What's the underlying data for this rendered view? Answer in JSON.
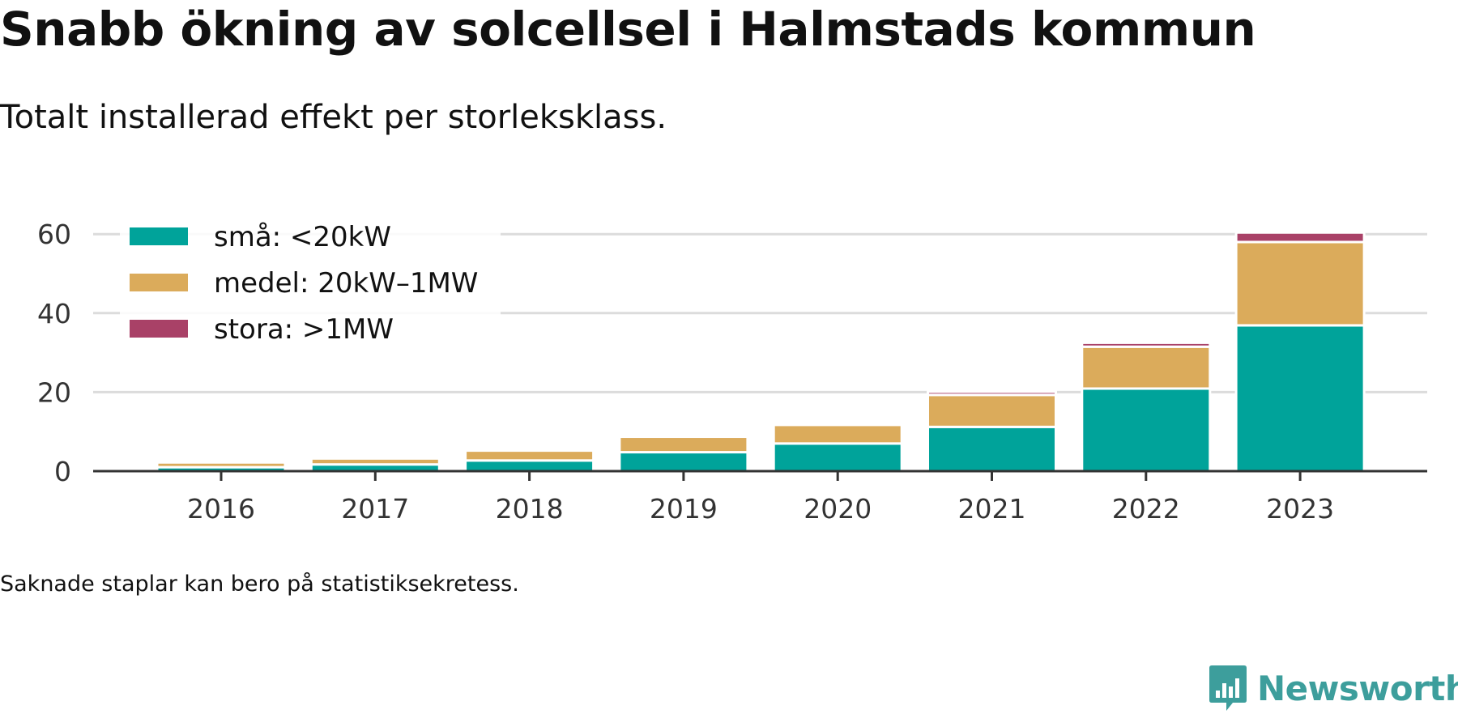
{
  "title": "Snabb ökning av solcellsel i Halmstads kommun",
  "subtitle": "Totalt installerad effekt per storleksklass.",
  "note": "Saknade staplar kan bero på statistiksekretess.",
  "brand": {
    "name": "Newsworthy",
    "icon": "newsworthy-logo-icon"
  },
  "chart_data": {
    "type": "bar",
    "stacked": true,
    "categories": [
      "2016",
      "2017",
      "2018",
      "2019",
      "2020",
      "2021",
      "2022",
      "2023"
    ],
    "series": [
      {
        "name": "små: <20kW",
        "color": "#00a39a",
        "values": [
          1.0,
          1.7,
          2.7,
          4.8,
          7.0,
          11.2,
          20.9,
          36.9
        ]
      },
      {
        "name": "medel: 20kW–1MW",
        "color": "#dbab5b",
        "values": [
          1.2,
          1.5,
          2.5,
          3.9,
          4.7,
          8.1,
          10.6,
          21.1
        ]
      },
      {
        "name": "stora: >1MW",
        "color": "#a94167",
        "values": [
          0,
          0,
          0,
          0,
          0,
          0.8,
          1.0,
          2.4
        ]
      }
    ],
    "ylim": [
      0,
      61
    ],
    "yticks": [
      0,
      20,
      40,
      60
    ],
    "grid": true,
    "legend": "top-left",
    "xlabel": "",
    "ylabel": ""
  }
}
